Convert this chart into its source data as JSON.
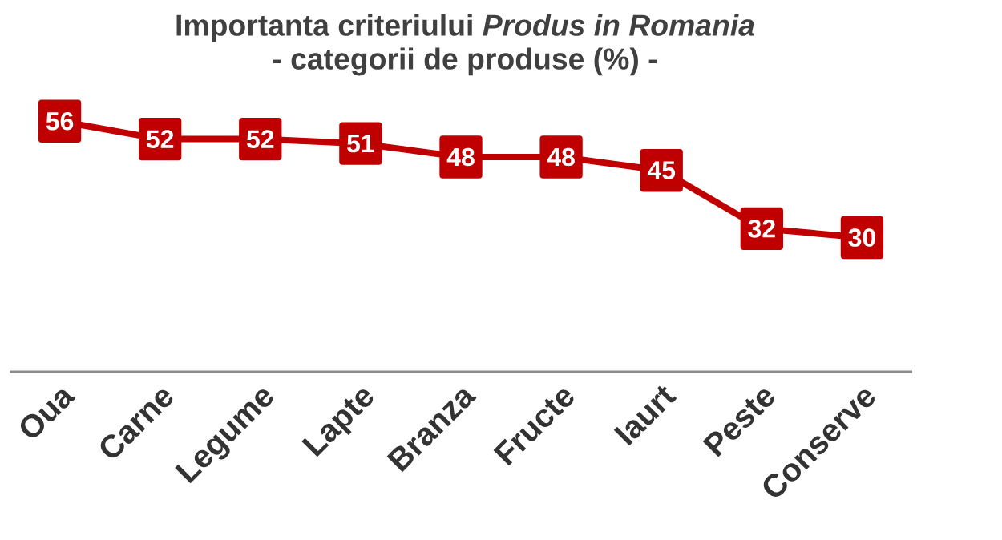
{
  "chart_data": {
    "type": "line",
    "title": "Importanta criteriului *Produs in Romania*",
    "subtitle": "- categorii de produse (%) -",
    "categories": [
      "Oua",
      "Carne",
      "Legume",
      "Lapte",
      "Branza",
      "Fructe",
      "Iaurt",
      "Peste",
      "Conserve"
    ],
    "values": [
      56,
      52,
      52,
      51,
      48,
      48,
      45,
      32,
      30
    ],
    "color": "#c00000",
    "marker": "square",
    "data_labels": true
  }
}
